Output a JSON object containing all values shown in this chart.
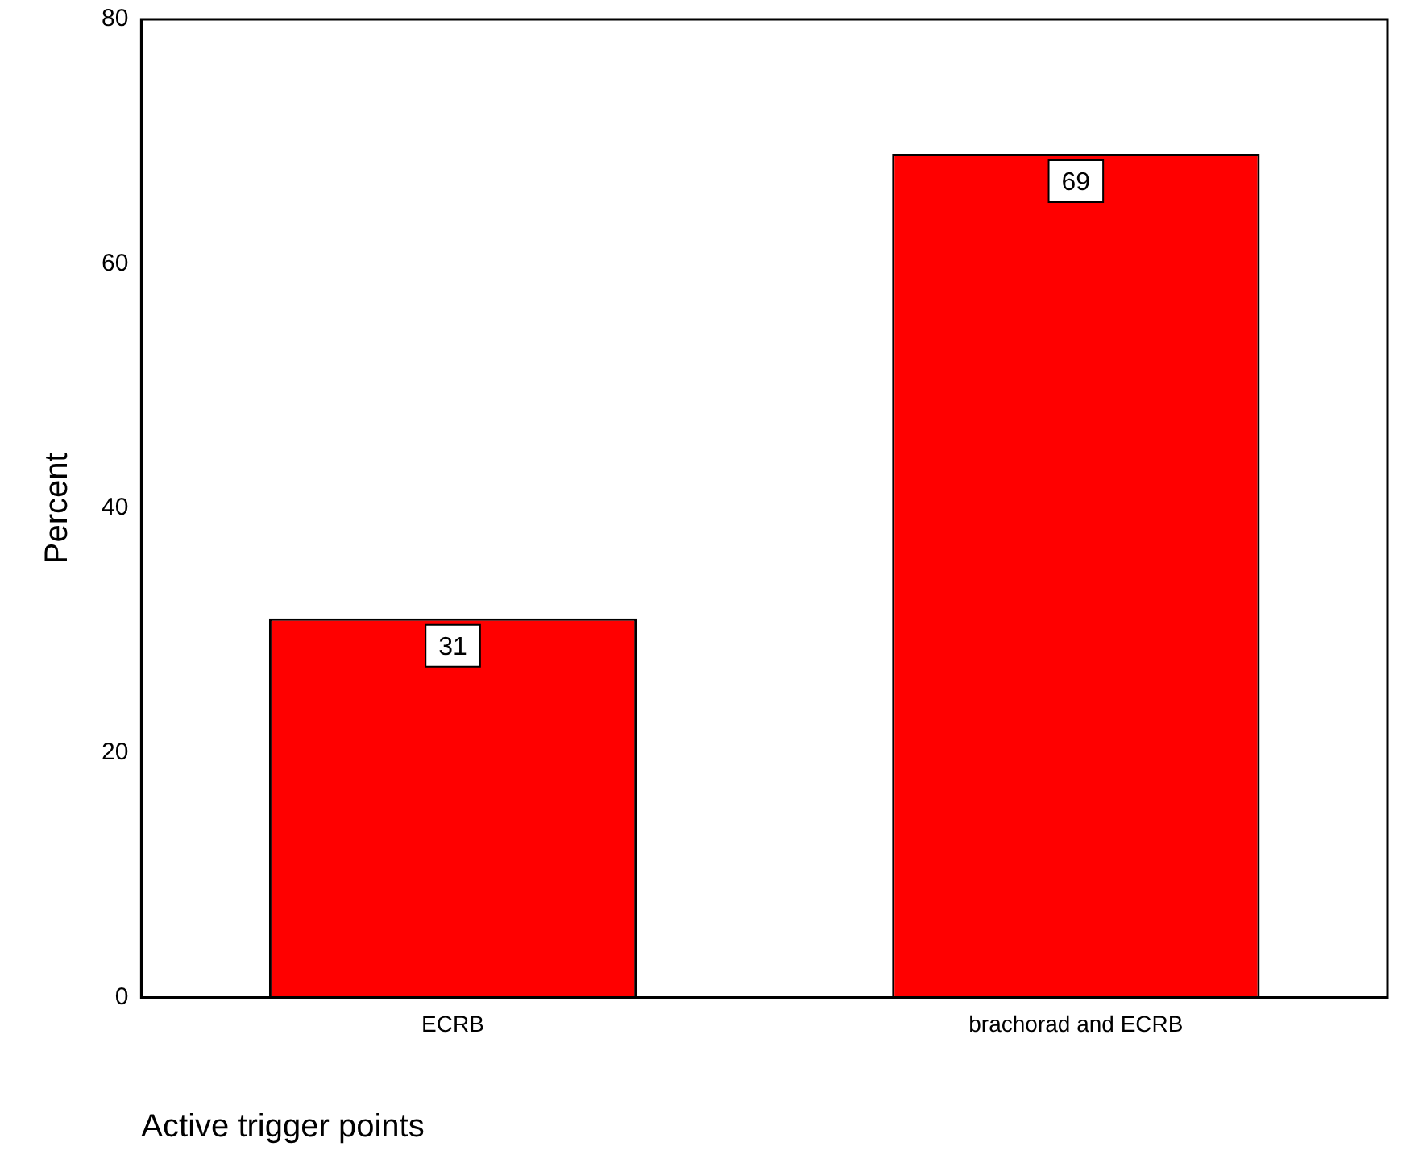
{
  "chart_data": {
    "type": "bar",
    "xlabel": "Active trigger points",
    "ylabel": "Percent",
    "categories": [
      "ECRB",
      "brachorad and ECRB"
    ],
    "values": [
      31,
      69
    ],
    "color": "#ff0000",
    "ylim": [
      0,
      80
    ],
    "yticks": [
      0,
      20,
      40,
      60,
      80
    ],
    "grid": false,
    "legend": false,
    "data_labels": true
  }
}
